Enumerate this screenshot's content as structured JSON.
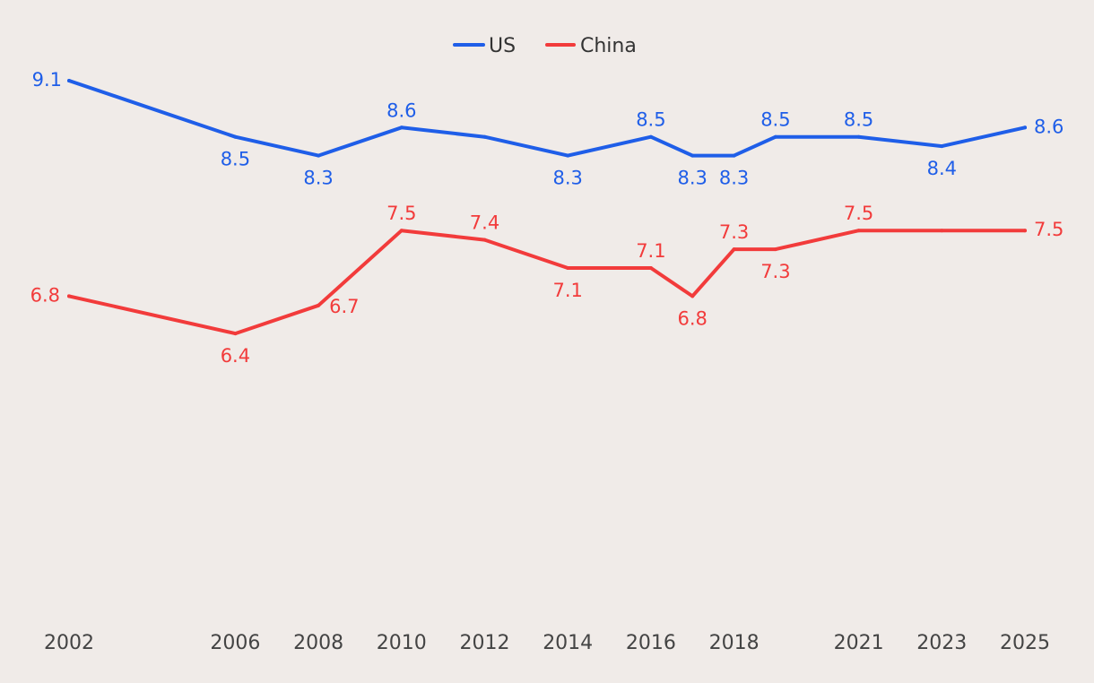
{
  "colors": {
    "background": "#f0ebe8",
    "US": "#1f5ee8",
    "China": "#f23b3b"
  },
  "legend": {
    "us_label": "US",
    "china_label": "China"
  },
  "chart_data": {
    "type": "line",
    "title": "",
    "xlabel": "",
    "ylabel": "",
    "legend_position": "top-center",
    "grid": false,
    "x_tick_labels": [
      "2002",
      "2006",
      "2008",
      "2010",
      "2012",
      "2014",
      "2016",
      "2018",
      "2021",
      "2023",
      "2025"
    ],
    "x_ticks": [
      2002,
      2006,
      2008,
      2010,
      2012,
      2014,
      2016,
      2018,
      2021,
      2023,
      2025
    ],
    "xlim": [
      2002,
      2025
    ],
    "ylim": [
      6.2,
      9.2
    ],
    "series": [
      {
        "name": "US",
        "x": [
          2002,
          2006,
          2008,
          2010,
          2012,
          2014,
          2016,
          2017,
          2018,
          2019,
          2021,
          2023,
          2025
        ],
        "values": [
          9.1,
          8.5,
          8.3,
          8.6,
          8.5,
          8.3,
          8.5,
          8.3,
          8.3,
          8.5,
          8.5,
          8.4,
          8.6
        ],
        "labels": [
          "9.1",
          "8.5",
          "8.3",
          "8.6",
          "",
          "8.3",
          "8.5",
          "8.3",
          "8.3",
          "8.5",
          "8.5",
          "8.4",
          "8.6"
        ]
      },
      {
        "name": "China",
        "x": [
          2002,
          2006,
          2008,
          2010,
          2012,
          2014,
          2016,
          2017,
          2018,
          2019,
          2021,
          2023,
          2025
        ],
        "values": [
          6.8,
          6.4,
          6.7,
          7.5,
          7.4,
          7.1,
          7.1,
          6.8,
          7.3,
          7.3,
          7.5,
          7.5,
          7.5
        ],
        "labels": [
          "6.8",
          "6.4",
          "6.7",
          "7.5",
          "7.4",
          "7.1",
          "7.1",
          "6.8",
          "7.3",
          "7.3",
          "7.5",
          "",
          "7.5"
        ]
      }
    ]
  }
}
